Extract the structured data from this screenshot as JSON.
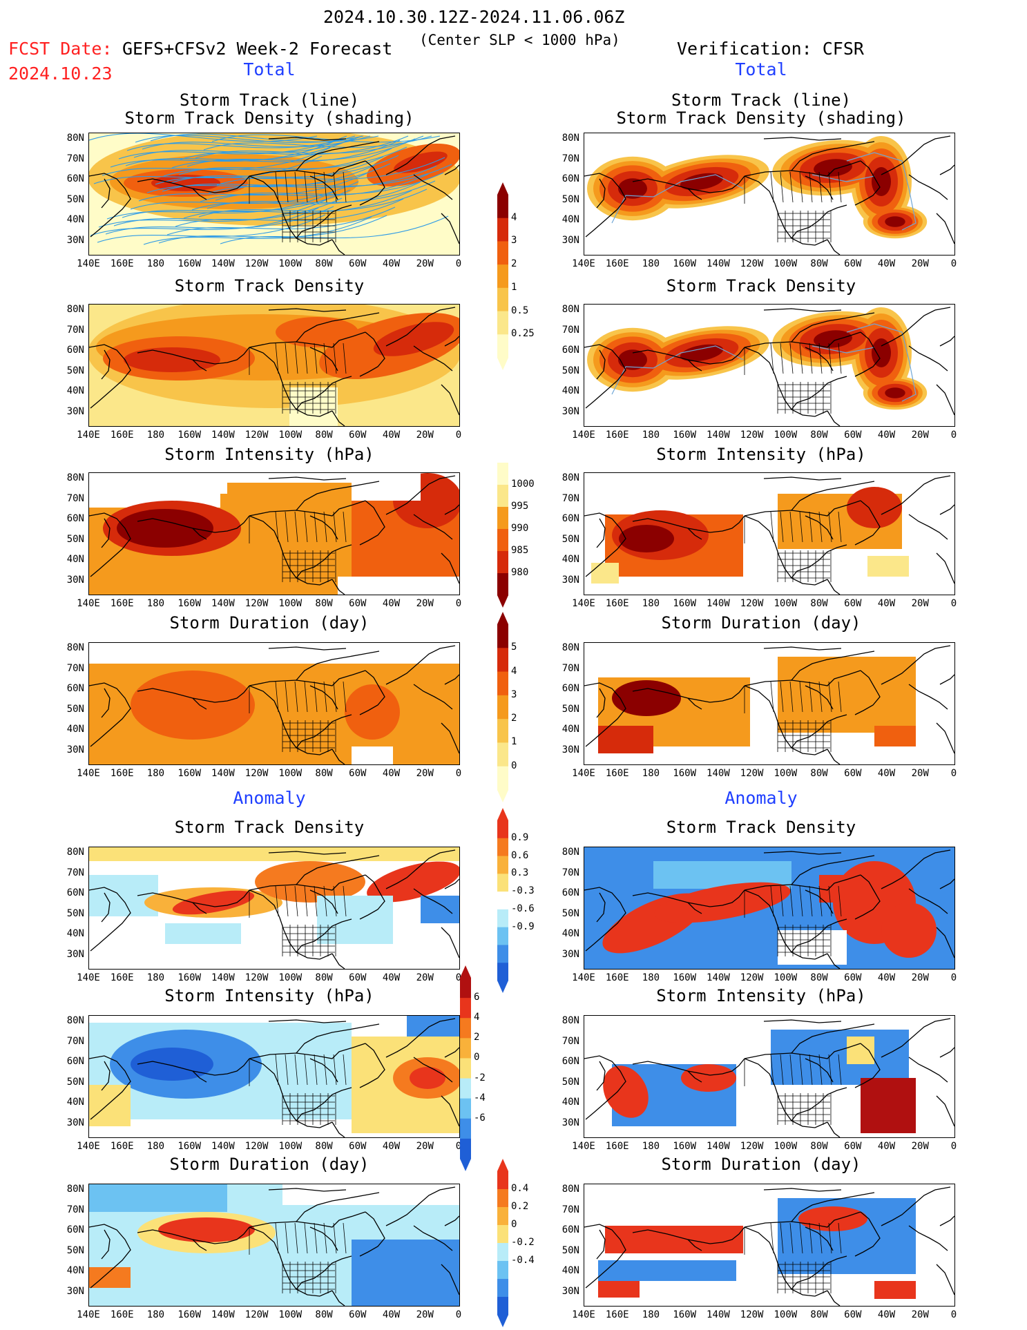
{
  "header": {
    "title": "2024.10.30.12Z-2024.11.06.06Z",
    "fcst_label": "FCST Date:",
    "forecast_label": "GEFS+CFSv2 Week-2 Forecast",
    "center_slp": "(Center SLP < 1000 hPa)",
    "verification_label": "Verification: CFSR",
    "fcst_date": "2024.10.23"
  },
  "sections": {
    "total": "Total",
    "anomaly": "Anomaly"
  },
  "panel_titles": {
    "track_line": "Storm Track (line)",
    "track_density_shading": "Storm Track Density (shading)",
    "track_density": "Storm Track Density",
    "intensity": "Storm Intensity (hPa)",
    "duration": "Storm Duration (day)"
  },
  "axes": {
    "lat_labels": [
      "80N",
      "70N",
      "60N",
      "50N",
      "40N",
      "30N"
    ],
    "lon_labels": [
      "140E",
      "160E",
      "180",
      "160W",
      "140W",
      "120W",
      "100W",
      "80W",
      "60W",
      "40W",
      "20W",
      "0"
    ]
  },
  "colorbars": {
    "density_total": {
      "labels": [
        "4",
        "3",
        "2",
        "1",
        "0.5",
        "0.25"
      ],
      "colors": [
        "#8b0000",
        "#d62b0b",
        "#f0600f",
        "#f59a1d",
        "#f8c44a",
        "#fbe78a",
        "#fffcc8"
      ]
    },
    "intensity_total": {
      "labels": [
        "1000",
        "995",
        "990",
        "985",
        "980"
      ],
      "colors": [
        "#fffcc8",
        "#fbe78a",
        "#f59a1d",
        "#f0600f",
        "#d62b0b",
        "#8b0000"
      ]
    },
    "duration_total": {
      "labels": [
        "5",
        "4",
        "3",
        "2",
        "1",
        "0"
      ],
      "colors": [
        "#8b0000",
        "#d62b0b",
        "#f0600f",
        "#f59a1d",
        "#f8c44a",
        "#fbe78a",
        "#fffcc8"
      ]
    },
    "density_anom": {
      "labels": [
        "0.9",
        "0.6",
        "0.3",
        "-0.3",
        "-0.6",
        "-0.9"
      ],
      "colors": [
        "#e8351c",
        "#f57a1f",
        "#f9b13a",
        "#fbe178",
        "#ffffff",
        "#b8ecf8",
        "#6cc2f2",
        "#3e8ee8",
        "#1f5fd6"
      ]
    },
    "intensity_anom": {
      "labels": [
        "6",
        "4",
        "2",
        "0",
        "-2",
        "-4",
        "-6"
      ],
      "colors": [
        "#b01010",
        "#e8351c",
        "#f57a1f",
        "#f9b13a",
        "#fbe178",
        "#b8ecf8",
        "#6cc2f2",
        "#3e8ee8",
        "#1f5fd6"
      ]
    },
    "duration_anom": {
      "labels": [
        "0.4",
        "0.2",
        "0",
        "-0.2",
        "-0.4"
      ],
      "colors": [
        "#e8351c",
        "#f57a1f",
        "#f9b13a",
        "#fbe178",
        "#b8ecf8",
        "#6cc2f2",
        "#3e8ee8",
        "#1f5fd6"
      ]
    }
  }
}
